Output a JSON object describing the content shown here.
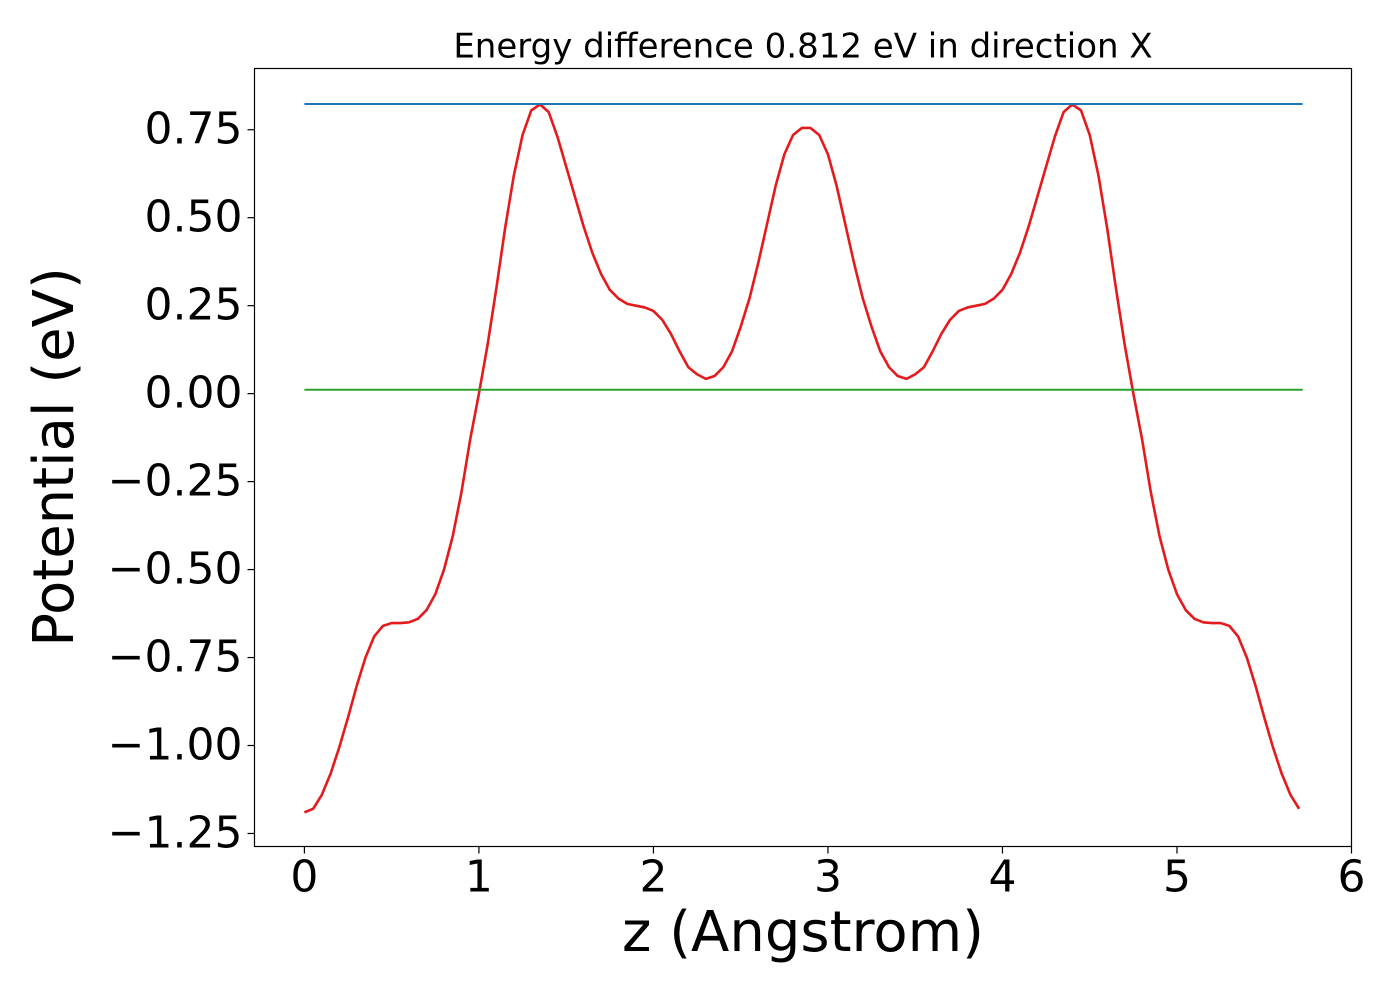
{
  "chart_data": {
    "type": "line",
    "title": "Energy difference 0.812 eV in direction X",
    "x_label": "z (Angstrom)",
    "y_label": "Potential (eV)",
    "xlim": [
      -0.286,
      6.0
    ],
    "ylim": [
      -1.287,
      0.924
    ],
    "xticks": [
      0,
      1,
      2,
      3,
      4,
      5,
      6
    ],
    "yticks": [
      {
        "value": -1.25,
        "label": "−1.25"
      },
      {
        "value": -1.0,
        "label": "−1.00"
      },
      {
        "value": -0.75,
        "label": "−0.75"
      },
      {
        "value": -0.5,
        "label": "−0.50"
      },
      {
        "value": -0.25,
        "label": "−0.25"
      },
      {
        "value": 0,
        "label": "0.00"
      },
      0.25,
      {
        "value": 0.5,
        "label": "0.50"
      },
      0.75
    ],
    "grid": false,
    "series": [
      {
        "color": "#e41a1c",
        "x": [
          0,
          0.05,
          0.1,
          0.15,
          0.2,
          0.25,
          0.3,
          0.35,
          0.4,
          0.45,
          0.5,
          0.55,
          0.6,
          0.65,
          0.7,
          0.75,
          0.8,
          0.85,
          0.9,
          0.95,
          1,
          1.05,
          1.1,
          1.15,
          1.2,
          1.25,
          1.3,
          1.35,
          1.4,
          1.45,
          1.5,
          1.55,
          1.6,
          1.65,
          1.7,
          1.75,
          1.8,
          1.85,
          1.9,
          1.95,
          2,
          2.05,
          2.1,
          2.15,
          2.2,
          2.25,
          2.3,
          2.35,
          2.4,
          2.45,
          2.5,
          2.55,
          2.6,
          2.65,
          2.7,
          2.75,
          2.8,
          2.85,
          2.9,
          2.95,
          3,
          3.05,
          3.1,
          3.15,
          3.2,
          3.25,
          3.3,
          3.35,
          3.4,
          3.45,
          3.5,
          3.55,
          3.6,
          3.65,
          3.7,
          3.75,
          3.8,
          3.85,
          3.9,
          3.95,
          4,
          4.05,
          4.1,
          4.15,
          4.2,
          4.25,
          4.3,
          4.35,
          4.4,
          4.45,
          4.5,
          4.55,
          4.6,
          4.65,
          4.7,
          4.75,
          4.8,
          4.85,
          4.9,
          4.95,
          5,
          5.05,
          5.1,
          5.15,
          5.2,
          5.25,
          5.3,
          5.35,
          5.4,
          5.45,
          5.5,
          5.55,
          5.6,
          5.65,
          5.7
        ],
        "values": [
          -1.19,
          -1.18,
          -1.14,
          -1.08,
          -1.005,
          -0.92,
          -0.83,
          -0.75,
          -0.69,
          -0.66,
          -0.652,
          -0.652,
          -0.65,
          -0.64,
          -0.615,
          -0.57,
          -0.5,
          -0.405,
          -0.28,
          -0.13,
          0.0,
          0.14,
          0.3,
          0.47,
          0.62,
          0.735,
          0.805,
          0.822,
          0.8,
          0.73,
          0.645,
          0.56,
          0.475,
          0.4,
          0.34,
          0.295,
          0.27,
          0.255,
          0.25,
          0.245,
          0.235,
          0.21,
          0.17,
          0.12,
          0.075,
          0.055,
          0.042,
          0.05,
          0.075,
          0.12,
          0.19,
          0.27,
          0.37,
          0.48,
          0.59,
          0.68,
          0.735,
          0.755,
          0.755,
          0.735,
          0.68,
          0.59,
          0.48,
          0.37,
          0.27,
          0.19,
          0.12,
          0.075,
          0.05,
          0.042,
          0.055,
          0.075,
          0.12,
          0.17,
          0.21,
          0.235,
          0.245,
          0.25,
          0.255,
          0.27,
          0.295,
          0.34,
          0.4,
          0.475,
          0.56,
          0.645,
          0.73,
          0.8,
          0.822,
          0.805,
          0.735,
          0.62,
          0.47,
          0.3,
          0.14,
          0.0,
          -0.13,
          -0.28,
          -0.405,
          -0.5,
          -0.57,
          -0.615,
          -0.64,
          -0.65,
          -0.652,
          -0.652,
          -0.66,
          -0.69,
          -0.75,
          -0.83,
          -0.92,
          -1.005,
          -1.08,
          -1.14,
          -1.18
        ]
      },
      {
        "color": "#1f77b4",
        "x": [
          0,
          5.72
        ],
        "values": [
          0.823,
          0.823
        ]
      },
      {
        "color": "#2ca02c",
        "x": [
          0,
          5.72
        ],
        "values": [
          0.011,
          0.011
        ]
      }
    ]
  }
}
